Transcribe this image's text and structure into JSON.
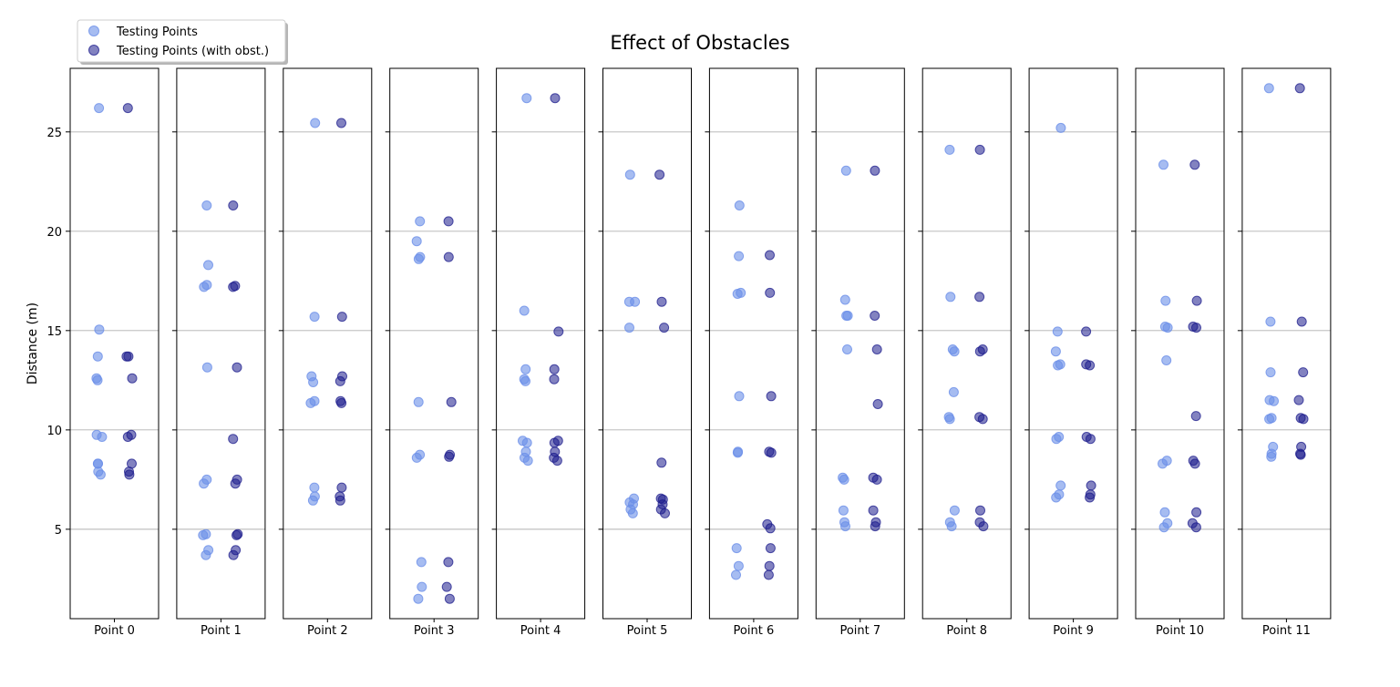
{
  "colors": {
    "series_0": "#6b8fe8",
    "series_1": "#1c1c8c",
    "grid": "#b0b0b0",
    "axis": "#000000"
  },
  "chart_data": {
    "type": "scatter",
    "title": "Effect of Obstacles",
    "ylabel": "Distance (m)",
    "xlabel": "",
    "ylim": [
      0.5,
      28.2
    ],
    "yticks": [
      5,
      10,
      15,
      20,
      25
    ],
    "grid": "y",
    "legend_position": "top-left",
    "panels": [
      "Point 0",
      "Point 1",
      "Point 2",
      "Point 3",
      "Point 4",
      "Point 5",
      "Point 6",
      "Point 7",
      "Point 8",
      "Point 9",
      "Point 10",
      "Point 11"
    ],
    "series": [
      {
        "name": "Testing Points",
        "color": "#6b8fe8",
        "opacity": 0.6,
        "values": [
          [
            26.2,
            15.05,
            13.7,
            12.6,
            12.5,
            9.75,
            9.65,
            8.3,
            8.3,
            7.9,
            7.75
          ],
          [
            21.3,
            18.3,
            17.3,
            17.2,
            13.15,
            7.5,
            7.3,
            4.75,
            4.7,
            3.95,
            3.7
          ],
          [
            25.45,
            15.7,
            12.7,
            12.4,
            11.45,
            11.35,
            7.1,
            6.65,
            6.45
          ],
          [
            20.5,
            19.5,
            18.7,
            18.6,
            11.4,
            8.75,
            8.6,
            3.35,
            2.1,
            1.5
          ],
          [
            26.7,
            16.0,
            13.05,
            12.55,
            12.45,
            9.45,
            9.35,
            8.9,
            8.6,
            8.45
          ],
          [
            22.85,
            16.45,
            16.45,
            15.15,
            6.55,
            6.35,
            6.25,
            6.0,
            5.8
          ],
          [
            21.3,
            18.75,
            16.9,
            16.85,
            11.7,
            8.9,
            8.85,
            4.05,
            3.15,
            2.7
          ],
          [
            23.05,
            16.55,
            15.75,
            15.75,
            14.05,
            7.6,
            7.5,
            5.95,
            5.35,
            5.15
          ],
          [
            24.1,
            16.7,
            14.05,
            13.95,
            11.9,
            10.65,
            10.55,
            5.95,
            5.35,
            5.15
          ],
          [
            25.2,
            14.95,
            13.95,
            13.3,
            13.25,
            9.65,
            9.55,
            7.2,
            6.75,
            6.6
          ],
          [
            23.35,
            16.5,
            15.2,
            15.15,
            13.5,
            8.45,
            8.3,
            5.85,
            5.3,
            5.1
          ],
          [
            27.2,
            15.45,
            12.9,
            11.5,
            11.45,
            10.6,
            10.55,
            9.15,
            8.8,
            8.65
          ]
        ]
      },
      {
        "name": "Testing Points (with obst.)",
        "color": "#1c1c8c",
        "opacity": 0.55,
        "values": [
          [
            26.2,
            13.7,
            13.7,
            12.6,
            9.75,
            9.65,
            8.3,
            7.9,
            7.75
          ],
          [
            21.3,
            17.25,
            17.2,
            13.15,
            9.55,
            7.5,
            7.3,
            4.75,
            4.7,
            3.95,
            3.7
          ],
          [
            25.45,
            15.7,
            12.7,
            12.45,
            11.45,
            11.35,
            7.1,
            6.65,
            6.45
          ],
          [
            20.5,
            18.7,
            11.4,
            8.75,
            8.65,
            3.35,
            2.1,
            1.5
          ],
          [
            26.7,
            14.95,
            13.05,
            12.55,
            9.45,
            9.35,
            8.9,
            8.6,
            8.45
          ],
          [
            22.85,
            16.45,
            15.15,
            8.35,
            6.55,
            6.5,
            6.25,
            6.0,
            5.8
          ],
          [
            18.8,
            16.9,
            11.7,
            8.9,
            8.85,
            5.25,
            5.05,
            4.05,
            3.15,
            2.7
          ],
          [
            23.05,
            15.75,
            14.05,
            11.3,
            7.6,
            7.5,
            5.95,
            5.35,
            5.15
          ],
          [
            24.1,
            16.7,
            14.05,
            13.95,
            10.65,
            10.55,
            5.95,
            5.35,
            5.15
          ],
          [
            14.95,
            13.3,
            13.25,
            9.65,
            9.55,
            7.2,
            6.75,
            6.6
          ],
          [
            23.35,
            16.5,
            15.2,
            15.15,
            10.7,
            8.45,
            8.3,
            5.85,
            5.3,
            5.1
          ],
          [
            27.2,
            15.45,
            12.9,
            11.5,
            10.6,
            10.55,
            9.15,
            8.8,
            8.75
          ]
        ]
      }
    ]
  }
}
